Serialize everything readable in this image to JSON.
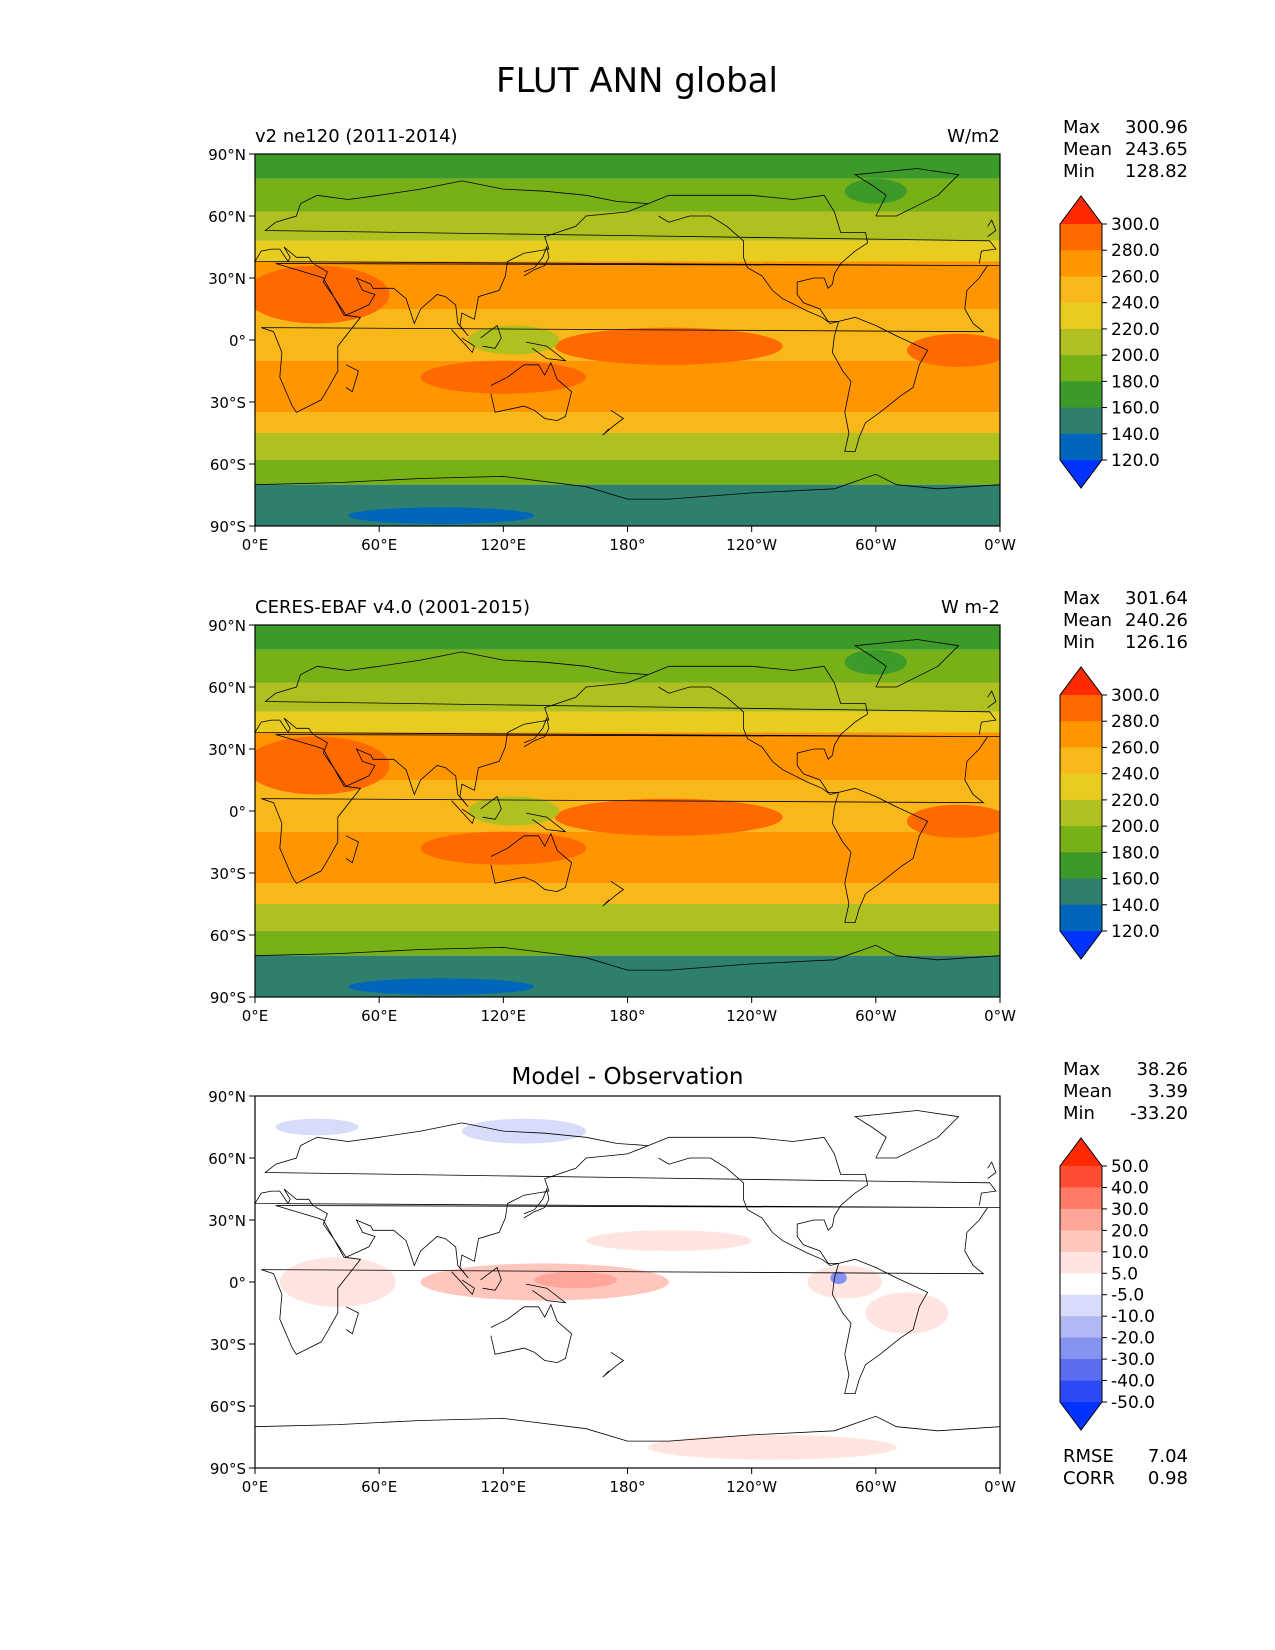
{
  "figure": {
    "title": "FLUT ANN global"
  },
  "panels": [
    {
      "id": "model",
      "left_title": "v2 ne120 (2011-2014)",
      "center_title": "",
      "units": "W/m2",
      "stats": {
        "max_label": "Max",
        "max": "300.96",
        "mean_label": "Mean",
        "mean": "243.65",
        "min_label": "Min",
        "min": "128.82"
      },
      "colorbar": {
        "labels": [
          "300.0",
          "280.0",
          "260.0",
          "240.0",
          "220.0",
          "200.0",
          "180.0",
          "160.0",
          "140.0",
          "120.0"
        ],
        "colors": [
          "#ff2a00",
          "#ff6a00",
          "#ff9600",
          "#f8b81a",
          "#e8cc20",
          "#b0c020",
          "#78b018",
          "#3c9a28",
          "#2e7f6e",
          "#0066bb",
          "#0033ff"
        ]
      }
    },
    {
      "id": "obs",
      "left_title": "CERES-EBAF v4.0 (2001-2015)",
      "center_title": "",
      "units": "W m-2",
      "stats": {
        "max_label": "Max",
        "max": "301.64",
        "mean_label": "Mean",
        "mean": "240.26",
        "min_label": "Min",
        "min": "126.16"
      },
      "colorbar": {
        "labels": [
          "300.0",
          "280.0",
          "260.0",
          "240.0",
          "220.0",
          "200.0",
          "180.0",
          "160.0",
          "140.0",
          "120.0"
        ],
        "colors": [
          "#ff2a00",
          "#ff6a00",
          "#ff9600",
          "#f8b81a",
          "#e8cc20",
          "#b0c020",
          "#78b018",
          "#3c9a28",
          "#2e7f6e",
          "#0066bb",
          "#0033ff"
        ]
      }
    },
    {
      "id": "diff",
      "left_title": "",
      "center_title": "Model - Observation",
      "units": "",
      "stats": {
        "max_label": "Max",
        "max": "38.26",
        "mean_label": "Mean",
        "mean": "3.39",
        "min_label": "Min",
        "min": "-33.20"
      },
      "extra_stats": {
        "rmse_label": "RMSE",
        "rmse": "7.04",
        "corr_label": "CORR",
        "corr": "0.98"
      },
      "colorbar": {
        "labels": [
          "50.0",
          "40.0",
          "30.0",
          "20.0",
          "10.0",
          "5.0",
          "-5.0",
          "-10.0",
          "-20.0",
          "-30.0",
          "-40.0",
          "-50.0"
        ],
        "colors": [
          "#ff2a00",
          "#ff4d33",
          "#ff7a66",
          "#ffa699",
          "#ffc6be",
          "#ffe4e0",
          "#ffffff",
          "#d7dcfa",
          "#b0b9f4",
          "#8492f0",
          "#5a6cf0",
          "#2e4af6",
          "#0033ff"
        ]
      }
    }
  ],
  "axes": {
    "lat_ticks": [
      "90°N",
      "60°N",
      "30°N",
      "0°",
      "30°S",
      "60°S",
      "90°S"
    ],
    "lon_ticks": [
      "0°E",
      "60°E",
      "120°E",
      "180°",
      "120°W",
      "60°W",
      "0°W"
    ]
  }
}
